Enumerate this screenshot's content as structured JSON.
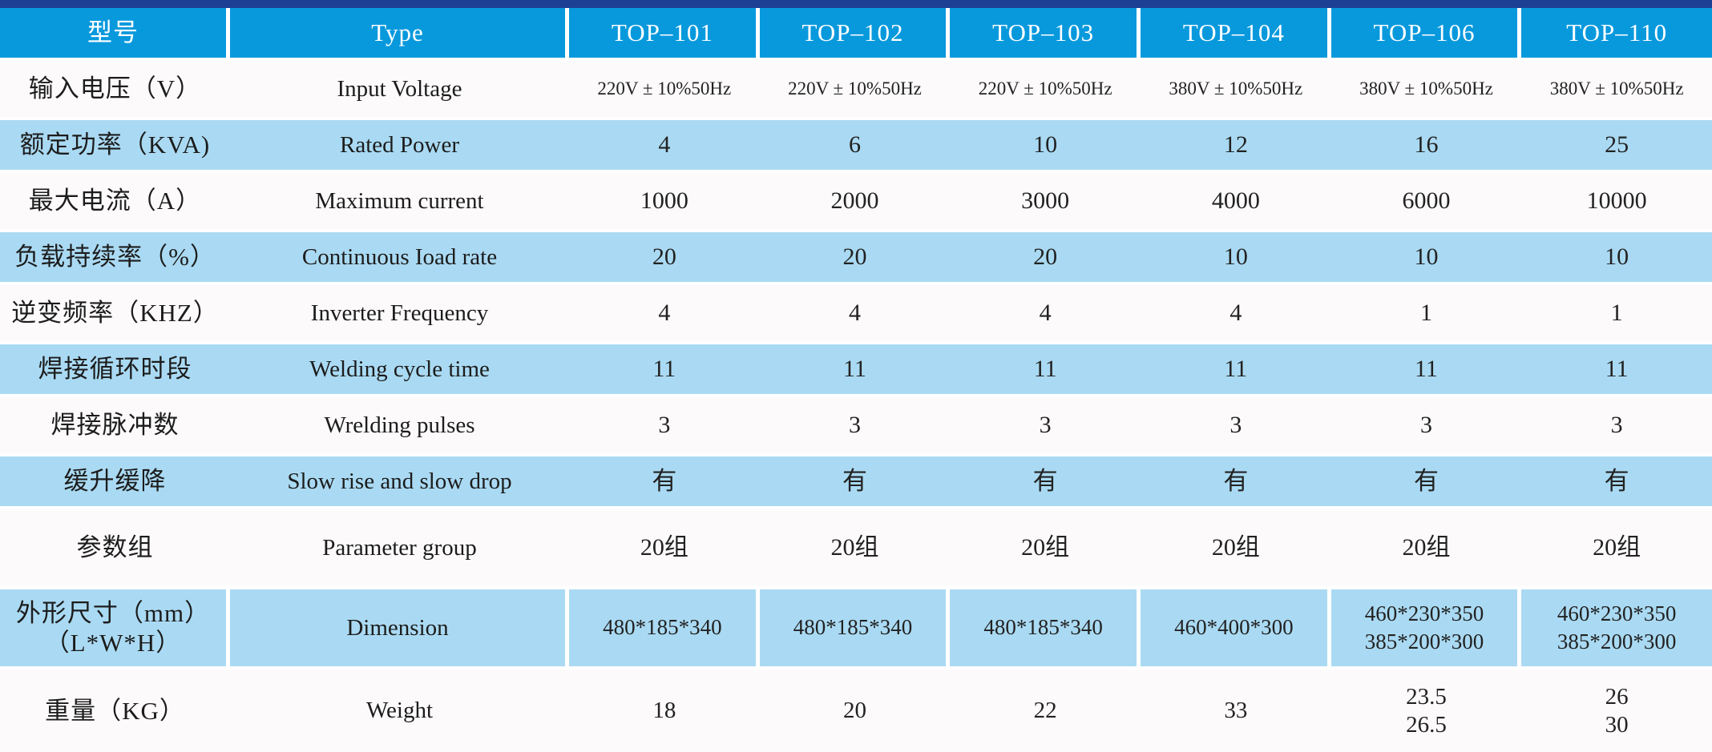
{
  "colors": {
    "top_strip": "#1e4094",
    "header_blue": "#0899dd",
    "band_light_blue": "#aadaf3",
    "band_white": "#fcfafa",
    "divider_white": "#ffffff",
    "text_dark": "#1c1c1c",
    "header_text": "#ffffff"
  },
  "table": {
    "header": {
      "col_zh": "型号",
      "col_en": "Type",
      "models": [
        "TOP–101",
        "TOP–102",
        "TOP–103",
        "TOP–104",
        "TOP–106",
        "TOP–110"
      ]
    },
    "rows": [
      {
        "zh": "输入电压（V）",
        "en": "Input Voltage",
        "values": [
          "220V ± 10%50Hz",
          "220V ± 10%50Hz",
          "220V ± 10%50Hz",
          "380V ± 10%50Hz",
          "380V ± 10%50Hz",
          "380V ± 10%50Hz"
        ]
      },
      {
        "zh": "额定功率（KVA)",
        "en": "Rated Power",
        "values": [
          "4",
          "6",
          "10",
          "12",
          "16",
          "25"
        ]
      },
      {
        "zh": "最大电流（A）",
        "en": "Maximum current",
        "values": [
          "1000",
          "2000",
          "3000",
          "4000",
          "6000",
          "10000"
        ]
      },
      {
        "zh": "负载持续率（%）",
        "en": "Continuous Ioad rate",
        "values": [
          "20",
          "20",
          "20",
          "10",
          "10",
          "10"
        ]
      },
      {
        "zh": "逆变频率（KHZ）",
        "en": "Inverter Frequency",
        "values": [
          "4",
          "4",
          "4",
          "4",
          "1",
          "1"
        ]
      },
      {
        "zh": "焊接循环时段",
        "en": "Welding cycle time",
        "values": [
          "11",
          "11",
          "11",
          "11",
          "11",
          "11"
        ]
      },
      {
        "zh": "焊接脉冲数",
        "en": "Wrelding pulses",
        "values": [
          "3",
          "3",
          "3",
          "3",
          "3",
          "3"
        ]
      },
      {
        "zh": "缓升缓降",
        "en": "Slow rise and slow drop",
        "values": [
          "有",
          "有",
          "有",
          "有",
          "有",
          "有"
        ]
      },
      {
        "zh": "参数组",
        "en": "Parameter group",
        "values": [
          "20组",
          "20组",
          "20组",
          "20组",
          "20组",
          "20组"
        ]
      },
      {
        "zh": "外形尺寸（mm）\n（L*W*H）",
        "en": "Dimension",
        "values": [
          "480*185*340",
          "480*185*340",
          "480*185*340",
          "460*400*300",
          "460*230*350\n385*200*300",
          "460*230*350\n385*200*300"
        ]
      },
      {
        "zh": "重量（KG）",
        "en": "Weight",
        "values": [
          "18",
          "20",
          "22",
          "33",
          "23.5\n26.5",
          "26\n30"
        ]
      }
    ]
  }
}
